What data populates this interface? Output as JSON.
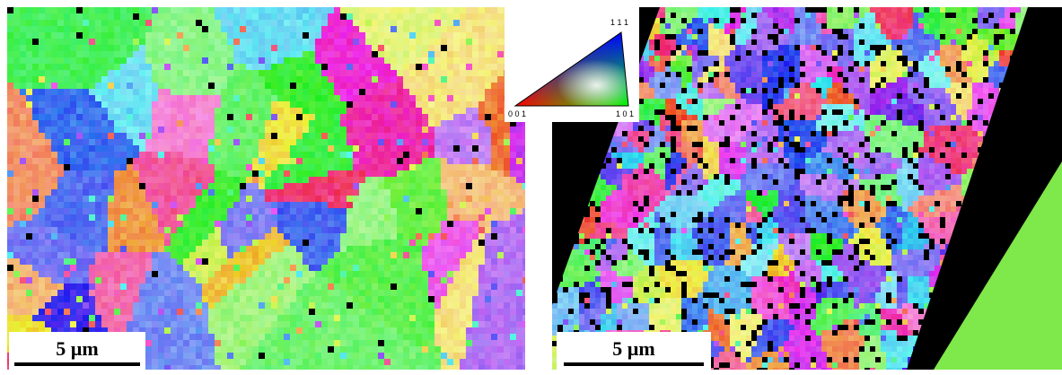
{
  "legend": {
    "top": "1 1 1",
    "left": "0 0 1",
    "right": "1 0 1"
  },
  "panels": [
    {
      "scale_bar": "5 µm"
    },
    {
      "scale_bar": "5 µm"
    }
  ]
}
